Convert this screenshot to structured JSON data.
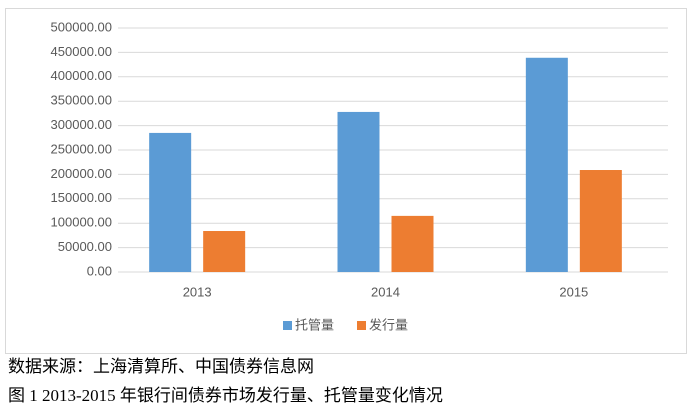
{
  "chart_data": {
    "type": "bar",
    "categories": [
      "2013",
      "2014",
      "2015"
    ],
    "series": [
      {
        "name": "托管量",
        "color": "#5b9bd5",
        "values": [
          285000,
          328000,
          439000
        ]
      },
      {
        "name": "发行量",
        "color": "#ed7d31",
        "values": [
          84000,
          115000,
          209000
        ]
      }
    ],
    "ylim": [
      0,
      500000
    ],
    "yticks": [
      {
        "value": 0,
        "label": "0.00"
      },
      {
        "value": 50000,
        "label": "50000.00"
      },
      {
        "value": 100000,
        "label": "100000.00"
      },
      {
        "value": 150000,
        "label": "150000.00"
      },
      {
        "value": 200000,
        "label": "200000.00"
      },
      {
        "value": 250000,
        "label": "250000.00"
      },
      {
        "value": 300000,
        "label": "300000.00"
      },
      {
        "value": 350000,
        "label": "350000.00"
      },
      {
        "value": 400000,
        "label": "400000.00"
      },
      {
        "value": 450000,
        "label": "450000.00"
      },
      {
        "value": 500000,
        "label": "500000.00"
      }
    ],
    "grid": true,
    "legend": "bottom",
    "source": "数据来源：上海清算所、中国债券信息网",
    "caption": "图 1   2013-2015 年银行间债券市场发行量、托管量变化情况"
  }
}
